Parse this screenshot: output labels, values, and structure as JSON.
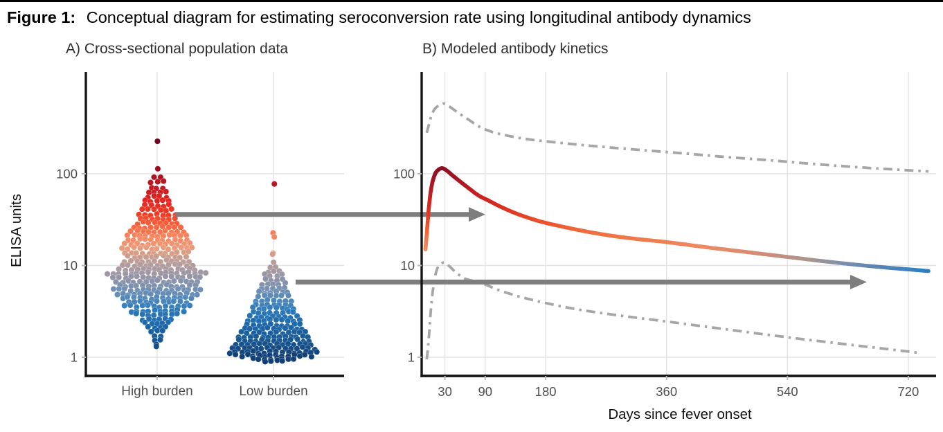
{
  "figure": {
    "label": "Figure 1:",
    "title": "Conceptual diagram for estimating seroconversion rate using longitudinal antibody dynamics"
  },
  "colors": {
    "background": "#ffffff",
    "top_rule": "#000000",
    "grid": "#e4e4e4",
    "axis": "#161616",
    "tick_label": "#4f4f4f",
    "panel_title": "#2f2f2f",
    "axis_title": "#111111",
    "arrow": "#7e7e7e",
    "dashed_curve": "#a6a6a6"
  },
  "chart_data": [
    {
      "type": "scatter",
      "variant": "beeswarm",
      "title": "A) Cross-sectional population data",
      "ylabel": "ELISA units",
      "yscale": "log",
      "ylim": [
        0.8,
        1500
      ],
      "yticks": [
        1,
        10,
        100
      ],
      "grid": true,
      "categories": [
        "High burden",
        "Low burden"
      ],
      "swarms": [
        {
          "category": "High burden",
          "rows": [
            [
              224,
              1
            ],
            [
              112,
              1
            ],
            [
              93,
              2
            ],
            [
              81,
              3
            ],
            [
              71,
              3
            ],
            [
              63,
              4
            ],
            [
              56,
              4
            ],
            [
              50,
              5
            ],
            [
              45,
              5
            ],
            [
              40,
              6
            ],
            [
              36,
              7
            ],
            [
              32,
              7
            ],
            [
              29,
              8
            ],
            [
              26,
              9
            ],
            [
              23.5,
              10
            ],
            [
              21,
              11
            ],
            [
              19,
              11
            ],
            [
              17,
              12
            ],
            [
              15.3,
              13
            ],
            [
              13.8,
              12
            ],
            [
              12.4,
              11
            ],
            [
              11.2,
              12
            ],
            [
              10.1,
              13
            ],
            [
              9.1,
              14
            ],
            [
              8.2,
              18
            ],
            [
              7.4,
              16
            ],
            [
              6.7,
              15
            ],
            [
              6,
              14
            ],
            [
              5.4,
              16
            ],
            [
              4.9,
              15
            ],
            [
              4.4,
              13
            ],
            [
              4,
              11
            ],
            [
              3.6,
              12
            ],
            [
              3.2,
              10
            ],
            [
              2.9,
              8
            ],
            [
              2.6,
              6
            ],
            [
              2.35,
              5
            ],
            [
              2.1,
              4
            ],
            [
              1.9,
              3
            ],
            [
              1.7,
              2
            ],
            [
              1.5,
              2
            ],
            [
              1.35,
              1
            ],
            [
              1.3,
              1
            ]
          ]
        },
        {
          "category": "Low burden",
          "rows": [
            [
              78,
              1
            ],
            [
              22,
              1
            ],
            [
              20.5,
              1
            ],
            [
              13.8,
              1
            ],
            [
              13,
              1
            ],
            [
              10.5,
              1
            ],
            [
              9.5,
              2
            ],
            [
              8.6,
              3
            ],
            [
              7.8,
              4
            ],
            [
              7,
              4
            ],
            [
              6.3,
              5
            ],
            [
              5.7,
              5
            ],
            [
              5.1,
              6
            ],
            [
              4.6,
              6
            ],
            [
              4.15,
              7
            ],
            [
              3.75,
              7
            ],
            [
              3.4,
              8
            ],
            [
              3.05,
              8
            ],
            [
              2.75,
              9
            ],
            [
              2.5,
              10
            ],
            [
              2.25,
              10
            ],
            [
              2.05,
              11
            ],
            [
              1.85,
              12
            ],
            [
              1.68,
              13
            ],
            [
              1.52,
              13
            ],
            [
              1.38,
              14
            ],
            [
              1.25,
              15
            ],
            [
              1.13,
              16
            ],
            [
              1.04,
              14
            ],
            [
              0.96,
              8
            ],
            [
              0.9,
              4
            ]
          ]
        }
      ],
      "color_scale": {
        "by": "log10(ELISA units)",
        "stops": [
          [
            0.0,
            "#123f75"
          ],
          [
            0.18,
            "#175792"
          ],
          [
            0.35,
            "#1d68a9"
          ],
          [
            0.5,
            "#2d79b7"
          ],
          [
            0.62,
            "#4d87bb"
          ],
          [
            0.72,
            "#6f90b4"
          ],
          [
            0.82,
            "#8793a9"
          ],
          [
            0.92,
            "#a198a3"
          ],
          [
            1.0,
            "#b29b9e"
          ],
          [
            1.08,
            "#c59e92"
          ],
          [
            1.18,
            "#e89d7c"
          ],
          [
            1.3,
            "#f58a64"
          ],
          [
            1.42,
            "#f4683f"
          ],
          [
            1.55,
            "#ee3f27"
          ],
          [
            1.7,
            "#e32420"
          ],
          [
            1.85,
            "#c01b24"
          ],
          [
            2.05,
            "#9c1222"
          ],
          [
            2.35,
            "#6f0a1e"
          ]
        ]
      }
    },
    {
      "type": "line",
      "title": "B) Modeled antibody kinetics",
      "xlabel": "Days since fever onset",
      "xticks": [
        30,
        90,
        180,
        360,
        540,
        720
      ],
      "yticks": [
        1,
        10,
        100
      ],
      "yscale": "log",
      "xlim": [
        0,
        760
      ],
      "grid": true,
      "series": [
        {
          "name": "modeled mean antibody trajectory",
          "style": "solid",
          "color": "value-gradient",
          "points": [
            [
              1,
              15
            ],
            [
              3,
              22
            ],
            [
              6,
              42
            ],
            [
              10,
              72
            ],
            [
              15,
              98
            ],
            [
              20,
              110
            ],
            [
              26,
              115
            ],
            [
              33,
              108
            ],
            [
              42,
              95
            ],
            [
              52,
              83
            ],
            [
              65,
              70
            ],
            [
              80,
              58
            ],
            [
              95,
              51
            ],
            [
              115,
              43
            ],
            [
              140,
              36
            ],
            [
              170,
              30.5
            ],
            [
              200,
              27
            ],
            [
              240,
              23.5
            ],
            [
              280,
              21
            ],
            [
              320,
              19.3
            ],
            [
              360,
              18
            ],
            [
              420,
              15.8
            ],
            [
              480,
              14
            ],
            [
              540,
              12.4
            ],
            [
              600,
              11
            ],
            [
              660,
              9.9
            ],
            [
              710,
              9.2
            ],
            [
              750,
              8.7
            ]
          ]
        },
        {
          "name": "upper uncertainty bound",
          "style": "dash-dot",
          "points": [
            [
              3,
              280
            ],
            [
              6,
              340
            ],
            [
              10,
              430
            ],
            [
              15,
              510
            ],
            [
              22,
              560
            ],
            [
              30,
              580
            ],
            [
              40,
              520
            ],
            [
              52,
              450
            ],
            [
              65,
              390
            ],
            [
              80,
              330
            ],
            [
              95,
              295
            ],
            [
              115,
              268
            ],
            [
              150,
              240
            ],
            [
              200,
              218
            ],
            [
              260,
              198
            ],
            [
              320,
              182
            ],
            [
              380,
              168
            ],
            [
              450,
              152
            ],
            [
              520,
              139
            ],
            [
              590,
              126
            ],
            [
              660,
              116
            ],
            [
              720,
              109
            ],
            [
              750,
              106
            ]
          ]
        },
        {
          "name": "lower uncertainty bound",
          "style": "dash-dot",
          "points": [
            [
              3,
              0.95
            ],
            [
              6,
              1.6
            ],
            [
              9,
              3.2
            ],
            [
              13,
              6
            ],
            [
              18,
              9
            ],
            [
              24,
              10.4
            ],
            [
              30,
              10.7
            ],
            [
              38,
              9.6
            ],
            [
              48,
              8.2
            ],
            [
              60,
              7.2
            ],
            [
              75,
              6.7
            ],
            [
              90,
              6.2
            ],
            [
              110,
              5.4
            ],
            [
              140,
              4.6
            ],
            [
              180,
              3.9
            ],
            [
              230,
              3.3
            ],
            [
              290,
              2.85
            ],
            [
              360,
              2.45
            ],
            [
              430,
              2.1
            ],
            [
              500,
              1.8
            ],
            [
              570,
              1.55
            ],
            [
              640,
              1.35
            ],
            [
              700,
              1.2
            ],
            [
              735,
              1.12
            ]
          ]
        }
      ],
      "curve_color_scale": {
        "by": "log10(ELISA units)",
        "stops": [
          [
            0.94,
            "#2a80c2"
          ],
          [
            0.98,
            "#5584b4"
          ],
          [
            1.02,
            "#7b8fae"
          ],
          [
            1.06,
            "#a8958f"
          ],
          [
            1.12,
            "#d08c77"
          ],
          [
            1.2,
            "#ee8a63"
          ],
          [
            1.35,
            "#f0703f"
          ],
          [
            1.5,
            "#e94a28"
          ],
          [
            1.65,
            "#d92a20"
          ],
          [
            1.8,
            "#c01e22"
          ],
          [
            1.95,
            "#a31524"
          ],
          [
            2.06,
            "#8c1024"
          ]
        ]
      }
    }
  ],
  "annotations": {
    "arrows": [
      {
        "name": "high-burden-titer-arrow",
        "value": 36,
        "from_category": "High burden",
        "to_day": 84
      },
      {
        "name": "low-burden-titer-arrow",
        "value": 6.6,
        "from_category": "Low burden",
        "to_day": 652
      }
    ]
  }
}
